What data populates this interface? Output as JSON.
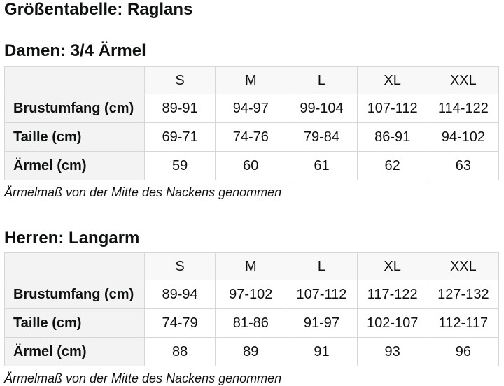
{
  "page_title": "Größentabelle: Raglans",
  "sections": [
    {
      "heading": "Damen: 3/4 Ärmel",
      "columns": [
        "S",
        "M",
        "L",
        "XL",
        "XXL"
      ],
      "rows": [
        {
          "label": "Brustumfang (cm)",
          "values": [
            "89-91",
            "94-97",
            "99-104",
            "107-112",
            "114-122"
          ]
        },
        {
          "label": "Taille (cm)",
          "values": [
            "69-71",
            "74-76",
            "79-84",
            "86-91",
            "94-102"
          ]
        },
        {
          "label": "Ärmel (cm)",
          "values": [
            "59",
            "60",
            "61",
            "62",
            "63"
          ]
        }
      ],
      "footnote": "Ärmelmaß von der Mitte des Nackens genommen"
    },
    {
      "heading": "Herren: Langarm",
      "columns": [
        "S",
        "M",
        "L",
        "XL",
        "XXL"
      ],
      "rows": [
        {
          "label": "Brustumfang (cm)",
          "values": [
            "89-94",
            "97-102",
            "107-112",
            "117-122",
            "127-132"
          ]
        },
        {
          "label": "Taille (cm)",
          "values": [
            "74-79",
            "81-86",
            "91-97",
            "102-107",
            "112-117"
          ]
        },
        {
          "label": "Ärmel (cm)",
          "values": [
            "88",
            "89",
            "91",
            "93",
            "96"
          ]
        }
      ],
      "footnote": "Ärmelmaß von der Mitte des Nackens genommen"
    }
  ],
  "colors": {
    "text": "#0f1111",
    "border": "#d7d7d7",
    "label_column_bg": "#f3f3f3",
    "header_row_bg": "#f8f8f8",
    "data_cell_bg": "#ffffff"
  }
}
